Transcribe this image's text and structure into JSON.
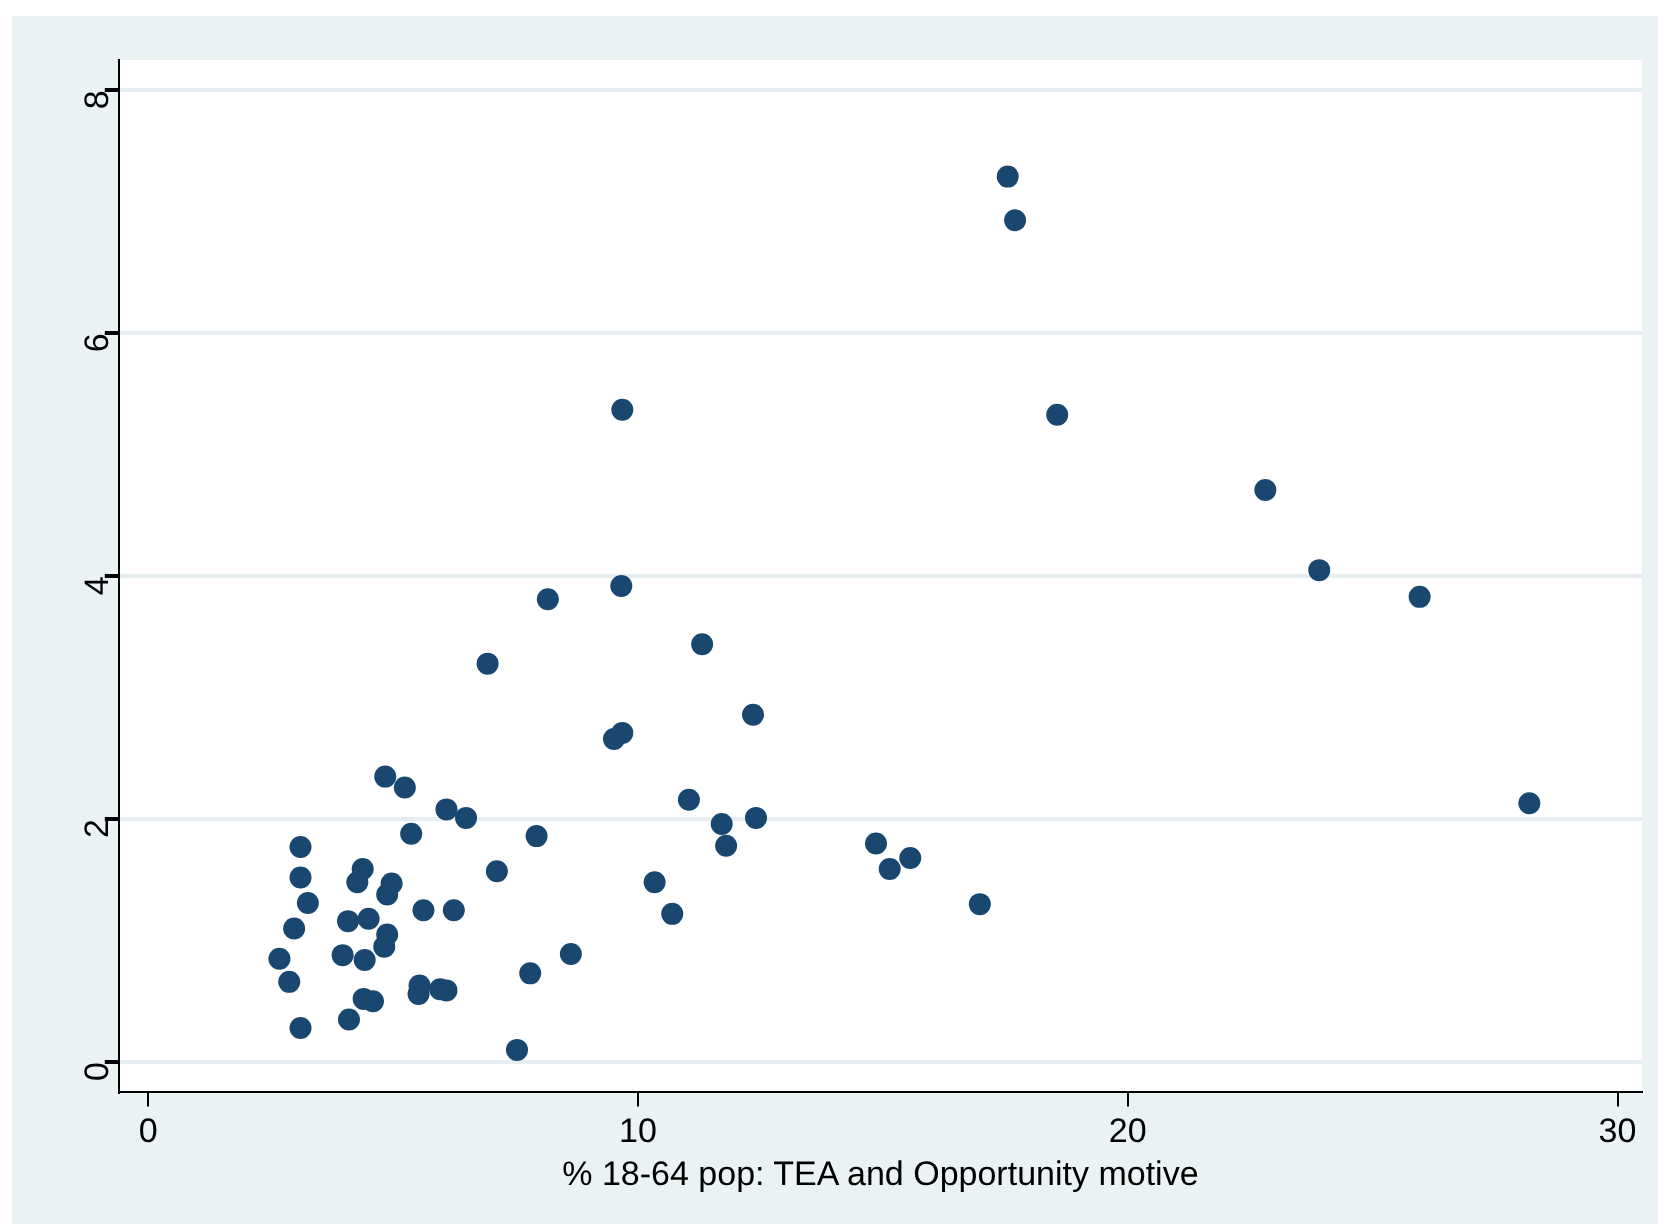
{
  "chart_data": {
    "type": "scatter",
    "xlabel": "% 18-64 pop: TEA and Opportunity motive",
    "xlim": [
      -0.6,
      30.5
    ],
    "xticks": [
      0,
      10,
      20,
      30
    ],
    "ylim": [
      -0.25,
      8.25
    ],
    "yticks": [
      0,
      2,
      4,
      6,
      8
    ],
    "grid": "y",
    "legend": false,
    "marker": "circle",
    "series": [
      {
        "color": "#1a476f",
        "x": [
          17.55,
          17.7,
          18.56,
          22.81,
          23.91,
          25.96,
          28.2,
          9.68,
          9.66,
          8.16,
          6.93,
          11.31,
          12.35,
          9.51,
          9.68,
          4.84,
          5.24,
          6.09,
          6.49,
          5.37,
          7.93,
          11.04,
          11.71,
          12.41,
          11.8,
          14.86,
          15.14,
          15.56,
          16.98,
          10.34,
          10.7,
          7.12,
          8.63,
          7.8,
          7.53,
          3.11,
          3.11,
          3.26,
          2.98,
          2.68,
          2.88,
          3.11,
          4.38,
          4.27,
          4.97,
          4.88,
          4.08,
          4.5,
          5.62,
          6.24,
          3.97,
          4.42,
          4.88,
          4.82,
          4.4,
          4.59,
          4.1,
          5.54,
          5.52,
          5.96,
          6.09
        ],
        "values": [
          7.29,
          6.93,
          5.33,
          4.71,
          4.05,
          3.83,
          2.13,
          5.37,
          3.92,
          3.81,
          3.28,
          3.44,
          2.86,
          2.66,
          2.71,
          2.35,
          2.26,
          2.08,
          2.01,
          1.88,
          1.86,
          2.16,
          1.96,
          2.01,
          1.78,
          1.8,
          1.59,
          1.68,
          1.3,
          1.48,
          1.22,
          1.57,
          0.89,
          0.73,
          0.1,
          1.77,
          1.52,
          1.31,
          1.1,
          0.85,
          0.66,
          0.28,
          1.59,
          1.48,
          1.47,
          1.38,
          1.16,
          1.18,
          1.25,
          1.25,
          0.88,
          0.84,
          1.05,
          0.95,
          0.52,
          0.5,
          0.35,
          0.63,
          0.56,
          0.6,
          0.59
        ]
      }
    ]
  }
}
